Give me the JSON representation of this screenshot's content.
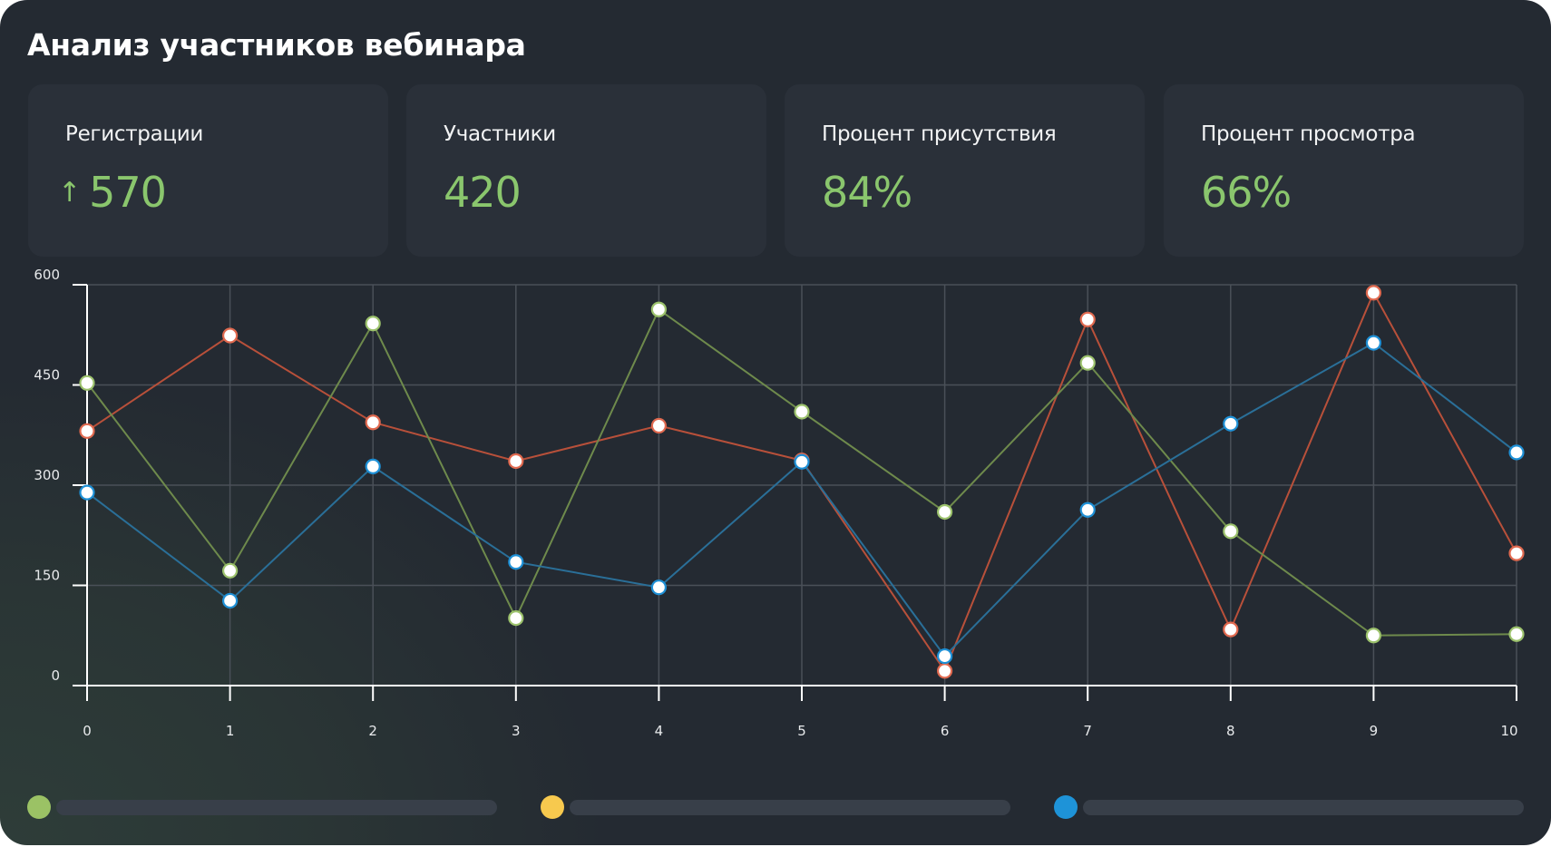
{
  "title": "Анализ участников вебинара",
  "cards": [
    {
      "label": "Регистрации",
      "value": "570",
      "trend_icon": "arrow-up-icon",
      "trend_glyph": "↑"
    },
    {
      "label": "Участники",
      "value": "420"
    },
    {
      "label": "Процент присутствия",
      "value": "84%"
    },
    {
      "label": "Процент просмотра",
      "value": "66%"
    }
  ],
  "colors": {
    "accent_value": "#8ac66d",
    "series_red": "#b8503a",
    "series_green": "#6e8a4c",
    "series_blue": "#2a6f98"
  },
  "legend": [
    {
      "color": "#9bc265",
      "label": ""
    },
    {
      "color": "#f7c94e",
      "label": ""
    },
    {
      "color": "#1e93d8",
      "label": ""
    }
  ],
  "chart_data": {
    "type": "line",
    "title": "",
    "xlabel": "",
    "ylabel": "",
    "x": [
      0,
      1,
      2,
      3,
      4,
      5,
      6,
      7,
      8,
      9,
      10
    ],
    "xlim": [
      0,
      10
    ],
    "ylim": [
      0,
      600
    ],
    "yticks": [
      0,
      150,
      300,
      450,
      600
    ],
    "xticks": [
      0,
      1,
      2,
      3,
      4,
      5,
      6,
      7,
      8,
      9,
      10
    ],
    "grid": true,
    "series": [
      {
        "name": "red",
        "line_color": "#b8503a",
        "marker_stroke": "#e0694f",
        "values": [
          381,
          524,
          394,
          336,
          389,
          337,
          22,
          548,
          84,
          588,
          198
        ]
      },
      {
        "name": "green",
        "line_color": "#6e8a4c",
        "marker_stroke": "#9cc26c",
        "values": [
          453,
          172,
          542,
          101,
          563,
          410,
          260,
          483,
          231,
          75,
          77
        ]
      },
      {
        "name": "blue",
        "line_color": "#2a6f98",
        "marker_stroke": "#1e90d6",
        "values": [
          289,
          127,
          328,
          185,
          147,
          335,
          44,
          263,
          392,
          513,
          349
        ]
      }
    ]
  }
}
